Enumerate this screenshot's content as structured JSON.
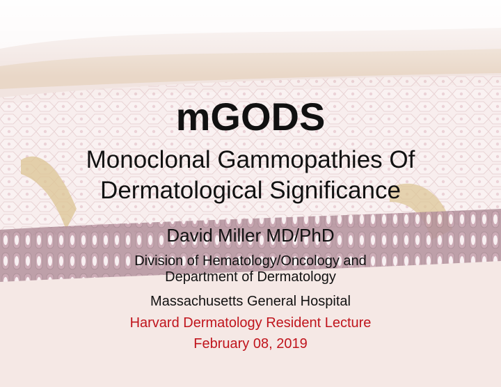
{
  "slide": {
    "title": "mGODS",
    "subtitle_line1": "Monoclonal Gammopathies Of",
    "subtitle_line2": "Dermatological Significance",
    "author": "David Miller MD/PhD",
    "affiliation_line1": "Division of Hematology/Oncology and",
    "affiliation_line2": "Department of Dermatology",
    "hospital": "Massachusetts General Hospital",
    "event": "Harvard Dermatology Resident Lecture",
    "date": "February 08, 2019"
  },
  "colors": {
    "accent_red": "#c0141c",
    "text": "#111111"
  }
}
